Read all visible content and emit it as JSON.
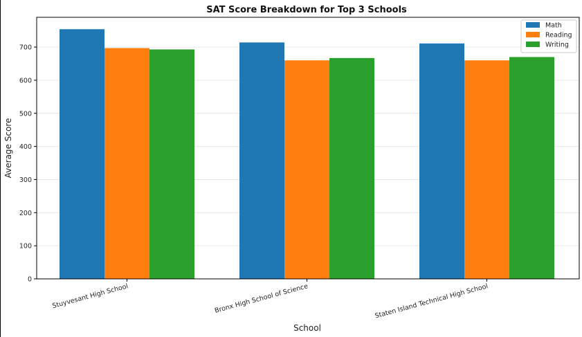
{
  "chart_data": {
    "type": "bar",
    "title": "SAT Score Breakdown for Top 3 Schools",
    "xlabel": "School",
    "ylabel": "Average Score",
    "categories": [
      "Stuyvesant High School",
      "Bronx High School of Science",
      "Staten Island Technical High School"
    ],
    "series": [
      {
        "name": "Math",
        "color": "#1f77b4",
        "values": [
          754,
          714,
          711
        ]
      },
      {
        "name": "Reading",
        "color": "#ff7f0e",
        "values": [
          697,
          660,
          660
        ]
      },
      {
        "name": "Writing",
        "color": "#2ca02c",
        "values": [
          693,
          667,
          670
        ]
      }
    ],
    "ylim": [
      0,
      790
    ],
    "yticks": [
      0,
      100,
      200,
      300,
      400,
      500,
      600,
      700
    ],
    "grid": true,
    "legend_position": "top-right"
  }
}
